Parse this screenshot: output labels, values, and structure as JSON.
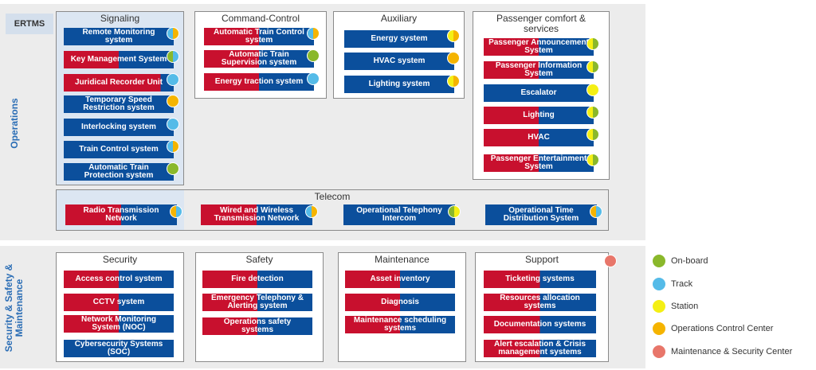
{
  "header": {
    "tag": "ERTMS"
  },
  "sections": [
    {
      "label": "Operations",
      "groups": [
        {
          "title": "Signaling",
          "items": [
            "Remote Monitoring system",
            "Key Management System",
            "Juridical Recorder Unit",
            "Temporary Speed Restriction system",
            "Interlocking system",
            "Train Control system",
            "Automatic Train Protection system"
          ]
        },
        {
          "title": "Command-Control",
          "items": [
            "Automatic Train Control system",
            "Automatic Train Supervision system",
            "Energy traction system"
          ]
        },
        {
          "title": "Auxiliary",
          "items": [
            "Energy system",
            "HVAC system",
            "Lighting system"
          ]
        },
        {
          "title": "Passenger comfort & services",
          "items": [
            "Passenger Announcement System",
            "Passenger Information System",
            "Escalator",
            "Lighting",
            "HVAC",
            "Passenger Entertainment System"
          ]
        },
        {
          "title": "Telecom",
          "items": [
            "Radio Transmission Network",
            "Wired and Wireless Transmission Network",
            "Operational Telephony Intercom",
            "Operational Time Distribution System"
          ]
        }
      ]
    },
    {
      "label": "Security & Safety & Maintenance",
      "groups": [
        {
          "title": "Security",
          "items": [
            "Access control system",
            "CCTV system",
            "Network Monitoring System (NOC)",
            "Cybersecurity Systems (SOC)"
          ]
        },
        {
          "title": "Safety",
          "items": [
            "Fire detection",
            "Emergency Telephony & Alerting system",
            "Operations safety systems"
          ]
        },
        {
          "title": "Maintenance",
          "items": [
            "Asset inventory",
            "Diagnosis",
            "Maintenance scheduling systems"
          ]
        },
        {
          "title": "Support",
          "items": [
            "Ticketing systems",
            "Resources allocation systems",
            "Documentation systems",
            "Alert escalation & Crisis management systems"
          ]
        }
      ]
    }
  ],
  "legend": [
    "On-board",
    "Track",
    "Station",
    "Operations Control Center",
    "Maintenance & Security Center"
  ]
}
